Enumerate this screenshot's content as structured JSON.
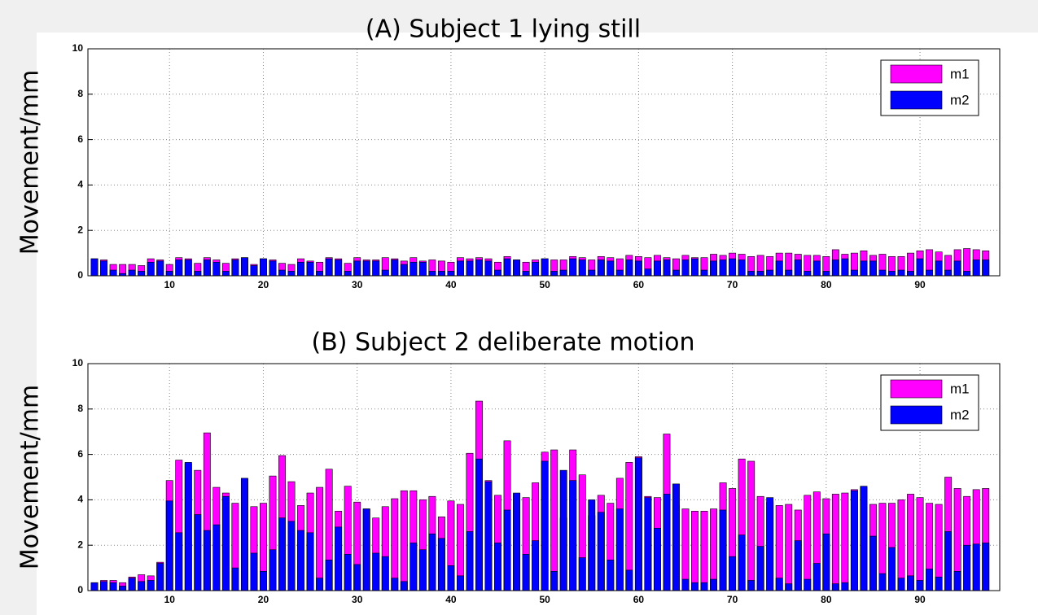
{
  "chart_data": [
    {
      "type": "bar",
      "title": "(A) Subject 1 lying still",
      "y_label": "Movement/mm",
      "x": [
        2,
        3,
        4,
        5,
        6,
        7,
        8,
        9,
        10,
        11,
        12,
        13,
        14,
        15,
        16,
        17,
        18,
        19,
        20,
        21,
        22,
        23,
        24,
        25,
        26,
        27,
        28,
        29,
        30,
        31,
        32,
        33,
        34,
        35,
        36,
        37,
        38,
        39,
        40,
        41,
        42,
        43,
        44,
        45,
        46,
        47,
        48,
        49,
        50,
        51,
        52,
        53,
        54,
        55,
        56,
        57,
        58,
        59,
        60,
        61,
        62,
        63,
        64,
        65,
        66,
        67,
        68,
        69,
        70,
        71,
        72,
        73,
        74,
        75,
        76,
        77,
        78,
        79,
        80,
        81,
        82,
        83,
        84,
        85,
        86,
        87,
        88,
        89,
        90,
        91,
        92,
        93,
        94,
        95,
        96,
        97
      ],
      "series": [
        {
          "name": "m1",
          "color": "#ff00ff",
          "values": [
            0.75,
            0.7,
            0.5,
            0.5,
            0.5,
            0.45,
            0.75,
            0.7,
            0.5,
            0.8,
            0.75,
            0.55,
            0.8,
            0.7,
            0.55,
            0.75,
            0.8,
            0.5,
            0.75,
            0.7,
            0.55,
            0.5,
            0.75,
            0.65,
            0.6,
            0.8,
            0.75,
            0.55,
            0.8,
            0.7,
            0.7,
            0.8,
            0.75,
            0.65,
            0.8,
            0.65,
            0.7,
            0.65,
            0.6,
            0.8,
            0.75,
            0.8,
            0.75,
            0.6,
            0.85,
            0.7,
            0.6,
            0.7,
            0.75,
            0.7,
            0.7,
            0.85,
            0.8,
            0.7,
            0.85,
            0.8,
            0.75,
            0.9,
            0.85,
            0.8,
            0.9,
            0.8,
            0.75,
            0.9,
            0.8,
            0.8,
            0.95,
            0.9,
            1.0,
            0.95,
            0.85,
            0.9,
            0.85,
            1.0,
            1.0,
            0.95,
            0.9,
            0.9,
            0.85,
            1.15,
            0.95,
            1.0,
            1.1,
            0.9,
            0.95,
            0.85,
            0.85,
            1.0,
            1.1,
            1.15,
            1.05,
            0.9,
            1.15,
            1.2,
            1.15,
            1.1
          ]
        },
        {
          "name": "m2",
          "color": "#0000ff",
          "values": [
            0.75,
            0.65,
            0.25,
            0.1,
            0.25,
            0.2,
            0.6,
            0.65,
            0.2,
            0.7,
            0.7,
            0.2,
            0.7,
            0.6,
            0.2,
            0.7,
            0.8,
            0.45,
            0.75,
            0.65,
            0.25,
            0.2,
            0.6,
            0.6,
            0.2,
            0.75,
            0.7,
            0.2,
            0.65,
            0.65,
            0.65,
            0.25,
            0.7,
            0.5,
            0.6,
            0.6,
            0.2,
            0.2,
            0.2,
            0.65,
            0.65,
            0.7,
            0.65,
            0.25,
            0.75,
            0.7,
            0.2,
            0.6,
            0.75,
            0.2,
            0.25,
            0.75,
            0.7,
            0.25,
            0.7,
            0.65,
            0.25,
            0.7,
            0.65,
            0.3,
            0.65,
            0.7,
            0.25,
            0.7,
            0.75,
            0.25,
            0.65,
            0.7,
            0.75,
            0.7,
            0.2,
            0.2,
            0.25,
            0.65,
            0.25,
            0.7,
            0.2,
            0.65,
            0.2,
            0.7,
            0.75,
            0.25,
            0.65,
            0.65,
            0.25,
            0.2,
            0.25,
            0.2,
            0.75,
            0.25,
            0.65,
            0.25,
            0.65,
            0.2,
            0.7,
            0.7
          ]
        }
      ],
      "xlim": [
        1.3,
        98.5
      ],
      "xticks": [
        10,
        20,
        30,
        40,
        50,
        60,
        70,
        80,
        90
      ],
      "ylim": [
        0,
        10
      ],
      "yticks": [
        0,
        2,
        4,
        6,
        8,
        10
      ],
      "grid": true,
      "legend": "upper right"
    },
    {
      "type": "bar",
      "title": "(B) Subject 2 deliberate motion",
      "y_label": "Movement/mm",
      "x": [
        2,
        3,
        4,
        5,
        6,
        7,
        8,
        9,
        10,
        11,
        12,
        13,
        14,
        15,
        16,
        17,
        18,
        19,
        20,
        21,
        22,
        23,
        24,
        25,
        26,
        27,
        28,
        29,
        30,
        31,
        32,
        33,
        34,
        35,
        36,
        37,
        38,
        39,
        40,
        41,
        42,
        43,
        44,
        45,
        46,
        47,
        48,
        49,
        50,
        51,
        52,
        53,
        54,
        55,
        56,
        57,
        58,
        59,
        60,
        61,
        62,
        63,
        64,
        65,
        66,
        67,
        68,
        69,
        70,
        71,
        72,
        73,
        74,
        75,
        76,
        77,
        78,
        79,
        80,
        81,
        82,
        83,
        84,
        85,
        86,
        87,
        88,
        89,
        90,
        91,
        92,
        93,
        94,
        95,
        96,
        97
      ],
      "series": [
        {
          "name": "m1",
          "color": "#ff00ff",
          "values": [
            0.35,
            0.45,
            0.45,
            0.35,
            0.6,
            0.7,
            0.65,
            1.25,
            4.85,
            5.75,
            5.6,
            5.3,
            6.95,
            4.55,
            4.3,
            3.85,
            4.9,
            3.7,
            3.85,
            5.05,
            5.95,
            4.8,
            3.75,
            4.3,
            4.55,
            5.35,
            3.5,
            4.6,
            3.9,
            3.6,
            3.2,
            3.7,
            4.05,
            4.4,
            4.4,
            4.0,
            4.15,
            3.25,
            3.95,
            3.8,
            6.05,
            8.35,
            4.85,
            4.2,
            6.6,
            4.25,
            4.1,
            4.75,
            6.1,
            6.2,
            3.2,
            6.2,
            5.1,
            3.3,
            4.2,
            3.85,
            4.95,
            5.65,
            5.9,
            4.15,
            4.1,
            6.9,
            3.75,
            3.6,
            3.5,
            3.5,
            3.6,
            4.75,
            4.5,
            5.8,
            5.7,
            4.15,
            3.9,
            3.75,
            3.8,
            3.55,
            4.2,
            4.35,
            4.05,
            4.25,
            4.3,
            4.45,
            4.55,
            3.8,
            3.85,
            3.85,
            4.0,
            4.25,
            4.1,
            3.85,
            3.8,
            5.0,
            4.5,
            4.15,
            4.45,
            4.5
          ]
        },
        {
          "name": "m2",
          "color": "#0000ff",
          "values": [
            0.35,
            0.4,
            0.35,
            0.2,
            0.55,
            0.4,
            0.45,
            1.2,
            3.95,
            2.55,
            5.65,
            3.35,
            2.65,
            2.9,
            4.15,
            1.0,
            4.95,
            1.65,
            0.85,
            1.8,
            3.2,
            3.05,
            2.65,
            2.55,
            0.55,
            1.35,
            2.8,
            1.6,
            1.15,
            3.6,
            1.65,
            1.5,
            0.55,
            0.4,
            2.1,
            1.8,
            2.5,
            2.3,
            1.1,
            0.65,
            2.6,
            5.8,
            4.8,
            2.1,
            3.55,
            4.3,
            1.6,
            2.2,
            5.7,
            0.85,
            5.3,
            4.85,
            1.45,
            4.0,
            3.45,
            1.35,
            3.6,
            0.9,
            5.85,
            4.1,
            2.75,
            4.25,
            4.7,
            0.5,
            0.35,
            0.35,
            0.5,
            3.55,
            1.5,
            2.45,
            0.45,
            1.95,
            4.1,
            0.55,
            0.3,
            2.2,
            0.5,
            1.2,
            2.5,
            0.3,
            0.35,
            4.4,
            4.6,
            2.4,
            0.75,
            1.9,
            0.55,
            0.65,
            0.45,
            0.95,
            0.6,
            2.6,
            0.85,
            2.0,
            2.05,
            2.1
          ]
        }
      ],
      "xlim": [
        1.3,
        98.5
      ],
      "xticks": [
        10,
        20,
        30,
        40,
        50,
        60,
        70,
        80,
        90
      ],
      "ylim": [
        0,
        10
      ],
      "yticks": [
        0,
        2,
        4,
        6,
        8,
        10
      ],
      "grid": true,
      "legend": "upper right"
    }
  ]
}
